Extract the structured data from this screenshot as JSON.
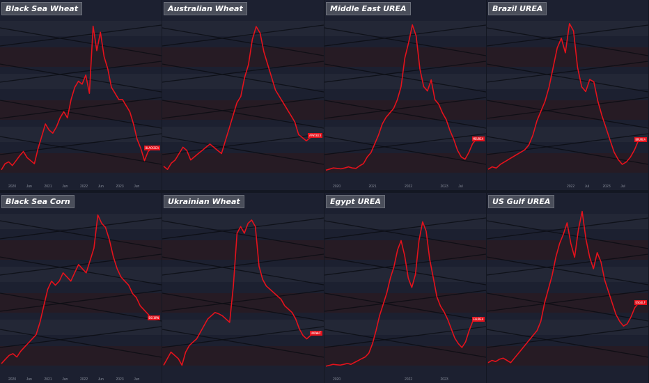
{
  "colors": {
    "background": "#131722",
    "panel": "#1c2030",
    "series": "#e4121c"
  },
  "chart_data": [
    {
      "type": "line",
      "title": "Black Sea Wheat",
      "x_ticks": [
        "2020",
        "Jun",
        "2021",
        "Jun",
        "2022",
        "Jun",
        "2023",
        "Jun"
      ],
      "y_ticks": [],
      "series": [
        {
          "values": [
            205,
            215,
            218,
            212,
            220,
            228,
            235,
            225,
            220,
            215,
            240,
            260,
            280,
            270,
            265,
            275,
            290,
            300,
            290,
            320,
            340,
            350,
            345,
            360,
            330,
            440,
            400,
            430,
            390,
            370,
            340,
            330,
            320,
            320,
            310,
            300,
            280,
            255,
            240,
            220,
            235,
            240
          ]
        }
      ],
      "ylim": [
        190,
        460
      ],
      "last_badge": "BLACKSEA"
    },
    {
      "type": "line",
      "title": "Australian Wheat",
      "x_ticks": [
        "",
        "",
        "",
        "",
        "",
        "",
        "",
        ""
      ],
      "y_ticks": [],
      "series": [
        {
          "values": [
            220,
            215,
            225,
            230,
            240,
            250,
            245,
            230,
            235,
            240,
            245,
            250,
            255,
            250,
            245,
            240,
            260,
            280,
            300,
            320,
            330,
            360,
            380,
            420,
            440,
            430,
            400,
            380,
            360,
            340,
            330,
            320,
            310,
            300,
            290,
            270,
            265,
            260,
            265,
            268
          ]
        }
      ],
      "ylim": [
        200,
        460
      ],
      "last_badge": "APW2023"
    },
    {
      "type": "line",
      "title": "Middle East UREA",
      "x_ticks": [
        "2020",
        "",
        "2021",
        "",
        "2022",
        "",
        "2023",
        "Jul"
      ],
      "y_ticks": [],
      "series": [
        {
          "values": [
            240,
            245,
            250,
            248,
            246,
            250,
            255,
            250,
            248,
            260,
            270,
            300,
            320,
            360,
            400,
            450,
            480,
            500,
            520,
            560,
            620,
            750,
            820,
            900,
            850,
            700,
            620,
            600,
            650,
            560,
            540,
            500,
            470,
            420,
            380,
            330,
            300,
            290,
            320,
            360,
            380
          ]
        }
      ],
      "ylim": [
        200,
        950
      ],
      "last_badge": "MEUREA"
    },
    {
      "type": "line",
      "title": "Brazil UREA",
      "x_ticks": [
        "",
        "",
        "",
        "",
        "2022",
        "Jul",
        "2023",
        "Jul"
      ],
      "y_ticks": [],
      "series": [
        {
          "values": [
            280,
            290,
            285,
            300,
            310,
            320,
            330,
            340,
            350,
            360,
            380,
            420,
            480,
            520,
            560,
            620,
            700,
            780,
            820,
            760,
            880,
            850,
            700,
            620,
            600,
            650,
            640,
            560,
            500,
            450,
            400,
            350,
            320,
            300,
            310,
            330,
            360,
            400
          ]
        }
      ],
      "ylim": [
        240,
        920
      ],
      "last_badge": "BRUREA"
    },
    {
      "type": "line",
      "title": "Black Sea Corn",
      "x_ticks": [
        "2020",
        "Jun",
        "2021",
        "Jun",
        "2022",
        "Jun",
        "2023",
        "Jun"
      ],
      "y_ticks": [],
      "series": [
        {
          "values": [
            160,
            165,
            170,
            172,
            168,
            175,
            180,
            185,
            190,
            195,
            210,
            230,
            250,
            260,
            255,
            260,
            270,
            265,
            260,
            270,
            280,
            275,
            270,
            285,
            300,
            340,
            330,
            325,
            310,
            290,
            275,
            265,
            260,
            255,
            245,
            240,
            230,
            225,
            220,
            215
          ]
        }
      ],
      "ylim": [
        150,
        350
      ],
      "last_badge": "BSCORN"
    },
    {
      "type": "line",
      "title": "Ukrainian Wheat",
      "x_ticks": [
        "",
        "",
        "",
        "",
        "",
        "",
        "",
        ""
      ],
      "y_ticks": [],
      "series": [
        {
          "values": [
            180,
            190,
            200,
            195,
            190,
            180,
            200,
            210,
            215,
            220,
            230,
            240,
            250,
            255,
            260,
            258,
            255,
            250,
            245,
            300,
            380,
            390,
            380,
            395,
            400,
            390,
            330,
            310,
            300,
            295,
            290,
            285,
            280,
            270,
            265,
            260,
            250,
            235,
            225,
            220,
            225,
            228
          ]
        }
      ],
      "ylim": [
        170,
        420
      ],
      "last_badge": "UKRWHT"
    },
    {
      "type": "line",
      "title": "Egypt UREA",
      "x_ticks": [
        "2020",
        "",
        "",
        "",
        "2022",
        "",
        "2023",
        ""
      ],
      "y_ticks": [],
      "series": [
        {
          "values": [
            230,
            235,
            240,
            238,
            236,
            240,
            245,
            240,
            250,
            260,
            270,
            280,
            300,
            350,
            420,
            500,
            560,
            620,
            700,
            760,
            850,
            900,
            820,
            700,
            650,
            720,
            900,
            1000,
            950,
            800,
            700,
            600,
            550,
            520,
            480,
            430,
            380,
            350,
            330,
            360,
            420,
            470,
            480
          ]
        }
      ],
      "ylim": [
        200,
        1080
      ],
      "last_badge": "EGUREA"
    },
    {
      "type": "line",
      "title": "US Gulf UREA",
      "x_ticks": [
        "",
        "",
        "",
        "",
        "",
        "",
        "",
        ""
      ],
      "y_ticks": [],
      "series": [
        {
          "values": [
            240,
            250,
            245,
            255,
            260,
            250,
            240,
            260,
            280,
            300,
            320,
            340,
            360,
            380,
            420,
            500,
            560,
            620,
            700,
            760,
            800,
            850,
            760,
            700,
            820,
            900,
            780,
            700,
            650,
            720,
            680,
            600,
            550,
            500,
            450,
            420,
            400,
            410,
            440,
            480,
            500
          ]
        }
      ],
      "ylim": [
        200,
        920
      ],
      "last_badge": "USGULF"
    }
  ]
}
